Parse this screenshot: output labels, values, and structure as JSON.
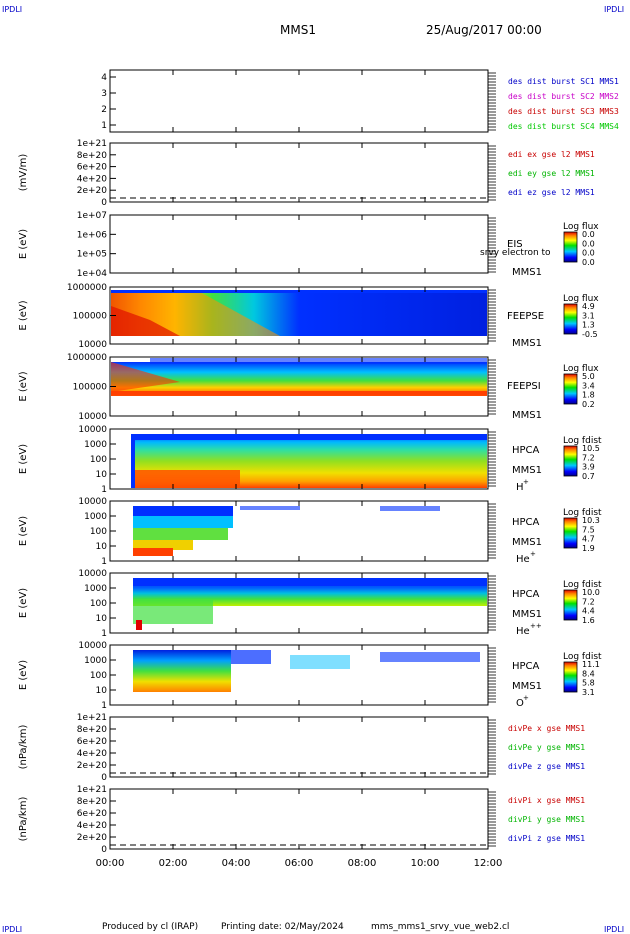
{
  "header": {
    "corner_label": "IPDLI",
    "spacecraft": "MMS1",
    "datetime": "25/Aug/2017 00:00"
  },
  "footer": {
    "produced_by": "Produced by cl (IRAP)",
    "printing_date": "Printing date: 02/May/2024",
    "script_name": "mms_mms1_srvy_vue_web2.cl"
  },
  "colors": {
    "mms1": "#0000c8",
    "mms2": "#c800c8",
    "mms3": "#c80000",
    "mms4": "#00c800",
    "x_component": "#c80000",
    "y_component": "#00b400",
    "z_component": "#0000c8"
  },
  "chart_data": {
    "type": "heatmap",
    "x_ticks": [
      "00:00",
      "02:00",
      "04:00",
      "06:00",
      "08:00",
      "10:00",
      "12:00"
    ],
    "xlim": [
      "00:00",
      "12:00"
    ],
    "panels": [
      {
        "id": "burst",
        "type": "line",
        "yticks": [
          "4",
          "3",
          "2",
          "1"
        ],
        "legend": [
          {
            "text": "des dist burst SC1 MMS1",
            "color": "#0000c8"
          },
          {
            "text": "des dist burst SC2 MMS2",
            "color": "#c800c8"
          },
          {
            "text": "des dist burst SC3 MMS3",
            "color": "#c80000"
          },
          {
            "text": "des dist burst SC4 MMS4",
            "color": "#00c800"
          }
        ]
      },
      {
        "id": "edi",
        "type": "line",
        "ylabel": "(mV/m)",
        "yticks": [
          "1e+21",
          "8e+20",
          "6e+20",
          "4e+20",
          "2e+20",
          "0"
        ],
        "legend": [
          {
            "text": "edi ex gse l2 MMS1",
            "color": "#c80000"
          },
          {
            "text": "edi ey gse l2 MMS1",
            "color": "#00b400"
          },
          {
            "text": "edi ez gse l2 MMS1",
            "color": "#0000c8"
          }
        ]
      },
      {
        "id": "eis",
        "type": "heatmap",
        "ylabel": "E (eV)",
        "yticks": [
          "1e+07",
          "1e+06",
          "1e+05",
          "1e+04"
        ],
        "instrument": "EIS",
        "subtitle": "srvy electron to",
        "spacecraft": "MMS1",
        "colorbar_title": "Log flux",
        "colorbar_ticks": [
          "0.0",
          "0.0",
          "0.0",
          "0.0"
        ]
      },
      {
        "id": "feepse",
        "type": "heatmap",
        "ylabel": "E (eV)",
        "yticks": [
          "1000000",
          "100000",
          "10000"
        ],
        "instrument": "FEEPSE",
        "spacecraft": "MMS1",
        "colorbar_title": "Log flux",
        "colorbar_ticks": [
          "4.9",
          "3.1",
          "1.3",
          "-0.5"
        ]
      },
      {
        "id": "feepsi",
        "type": "heatmap",
        "ylabel": "E (eV)",
        "yticks": [
          "1000000",
          "100000",
          "10000"
        ],
        "instrument": "FEEPSI",
        "spacecraft": "MMS1",
        "colorbar_title": "Log flux",
        "colorbar_ticks": [
          "5.0",
          "3.4",
          "1.8",
          "0.2"
        ]
      },
      {
        "id": "hpca_h",
        "type": "heatmap",
        "ylabel": "E (eV)",
        "yticks": [
          "10000",
          "1000",
          "100",
          "10",
          "1"
        ],
        "instrument": "HPCA",
        "spacecraft": "MMS1",
        "species": "H",
        "charge": "+",
        "colorbar_title": "Log fdist",
        "colorbar_ticks": [
          "10.5",
          "7.2",
          "3.9",
          "0.7"
        ]
      },
      {
        "id": "hpca_he1",
        "type": "heatmap",
        "ylabel": "E (eV)",
        "yticks": [
          "10000",
          "1000",
          "100",
          "10",
          "1"
        ],
        "instrument": "HPCA",
        "spacecraft": "MMS1",
        "species": "He",
        "charge": "+",
        "colorbar_title": "Log fdist",
        "colorbar_ticks": [
          "10.3",
          "7.5",
          "4.7",
          "1.9"
        ]
      },
      {
        "id": "hpca_he2",
        "type": "heatmap",
        "ylabel": "E (eV)",
        "yticks": [
          "10000",
          "1000",
          "100",
          "10",
          "1"
        ],
        "instrument": "HPCA",
        "spacecraft": "MMS1",
        "species": "He",
        "charge": "++",
        "colorbar_title": "Log fdist",
        "colorbar_ticks": [
          "10.0",
          "7.2",
          "4.4",
          "1.6"
        ]
      },
      {
        "id": "hpca_o",
        "type": "heatmap",
        "ylabel": "E (eV)",
        "yticks": [
          "10000",
          "1000",
          "100",
          "10",
          "1"
        ],
        "instrument": "HPCA",
        "spacecraft": "MMS1",
        "species": "O",
        "charge": "+",
        "colorbar_title": "Log fdist",
        "colorbar_ticks": [
          "11.1",
          "8.4",
          "5.8",
          "3.1"
        ]
      },
      {
        "id": "divpe",
        "type": "line",
        "ylabel": "(nPa/km)",
        "yticks": [
          "1e+21",
          "8e+20",
          "6e+20",
          "4e+20",
          "2e+20",
          "0"
        ],
        "legend": [
          {
            "text": "divPe x gse MMS1",
            "color": "#c80000"
          },
          {
            "text": "divPe y gse MMS1",
            "color": "#00b400"
          },
          {
            "text": "divPe z gse MMS1",
            "color": "#0000c8"
          }
        ]
      },
      {
        "id": "divpi",
        "type": "line",
        "ylabel": "(nPa/km)",
        "yticks": [
          "1e+21",
          "8e+20",
          "6e+20",
          "4e+20",
          "2e+20",
          "0"
        ],
        "legend": [
          {
            "text": "divPi x gse MMS1",
            "color": "#c80000"
          },
          {
            "text": "divPi y gse MMS1",
            "color": "#00b400"
          },
          {
            "text": "divPi z gse MMS1",
            "color": "#0000c8"
          }
        ]
      }
    ]
  }
}
